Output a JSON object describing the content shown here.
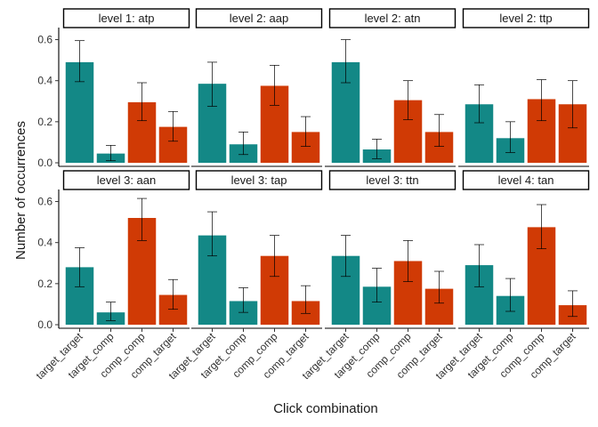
{
  "chart_data": {
    "type": "bar",
    "xlabel": "Click combination",
    "ylabel": "Number of occurrences",
    "ylim": [
      0,
      0.65
    ],
    "yticks": [
      "0.0",
      "0.2",
      "0.4",
      "0.6"
    ],
    "categories": [
      "target_target",
      "target_comp",
      "comp_comp",
      "comp_target"
    ],
    "colors": [
      "#138886",
      "#138886",
      "#d03a05",
      "#d03a05"
    ],
    "grid": false,
    "legend": "none",
    "panels": [
      {
        "title": "level 1: atp",
        "values": [
          0.49,
          0.045,
          0.295,
          0.175
        ],
        "error_low": [
          0.395,
          0.01,
          0.205,
          0.105
        ],
        "error_high": [
          0.595,
          0.085,
          0.39,
          0.25
        ]
      },
      {
        "title": "level 2: aap",
        "values": [
          0.385,
          0.09,
          0.375,
          0.15
        ],
        "error_low": [
          0.275,
          0.04,
          0.28,
          0.08
        ],
        "error_high": [
          0.49,
          0.15,
          0.475,
          0.225
        ]
      },
      {
        "title": "level 2: atn",
        "values": [
          0.49,
          0.065,
          0.305,
          0.15
        ],
        "error_low": [
          0.39,
          0.02,
          0.21,
          0.08
        ],
        "error_high": [
          0.6,
          0.115,
          0.4,
          0.235
        ]
      },
      {
        "title": "level 2: ttp",
        "values": [
          0.285,
          0.12,
          0.31,
          0.285
        ],
        "error_low": [
          0.195,
          0.05,
          0.205,
          0.17
        ],
        "error_high": [
          0.38,
          0.2,
          0.405,
          0.4
        ]
      },
      {
        "title": "level 3: aan",
        "values": [
          0.28,
          0.06,
          0.52,
          0.145
        ],
        "error_low": [
          0.185,
          0.02,
          0.41,
          0.075
        ],
        "error_high": [
          0.375,
          0.11,
          0.615,
          0.22
        ]
      },
      {
        "title": "level 3: tap",
        "values": [
          0.435,
          0.115,
          0.335,
          0.115
        ],
        "error_low": [
          0.335,
          0.06,
          0.235,
          0.055
        ],
        "error_high": [
          0.55,
          0.18,
          0.435,
          0.19
        ]
      },
      {
        "title": "level 3: ttn",
        "values": [
          0.335,
          0.185,
          0.31,
          0.175
        ],
        "error_low": [
          0.235,
          0.11,
          0.21,
          0.105
        ],
        "error_high": [
          0.435,
          0.275,
          0.41,
          0.26
        ]
      },
      {
        "title": "level 4: tan",
        "values": [
          0.29,
          0.14,
          0.475,
          0.095
        ],
        "error_low": [
          0.185,
          0.065,
          0.37,
          0.04
        ],
        "error_high": [
          0.39,
          0.225,
          0.585,
          0.165
        ]
      }
    ]
  }
}
